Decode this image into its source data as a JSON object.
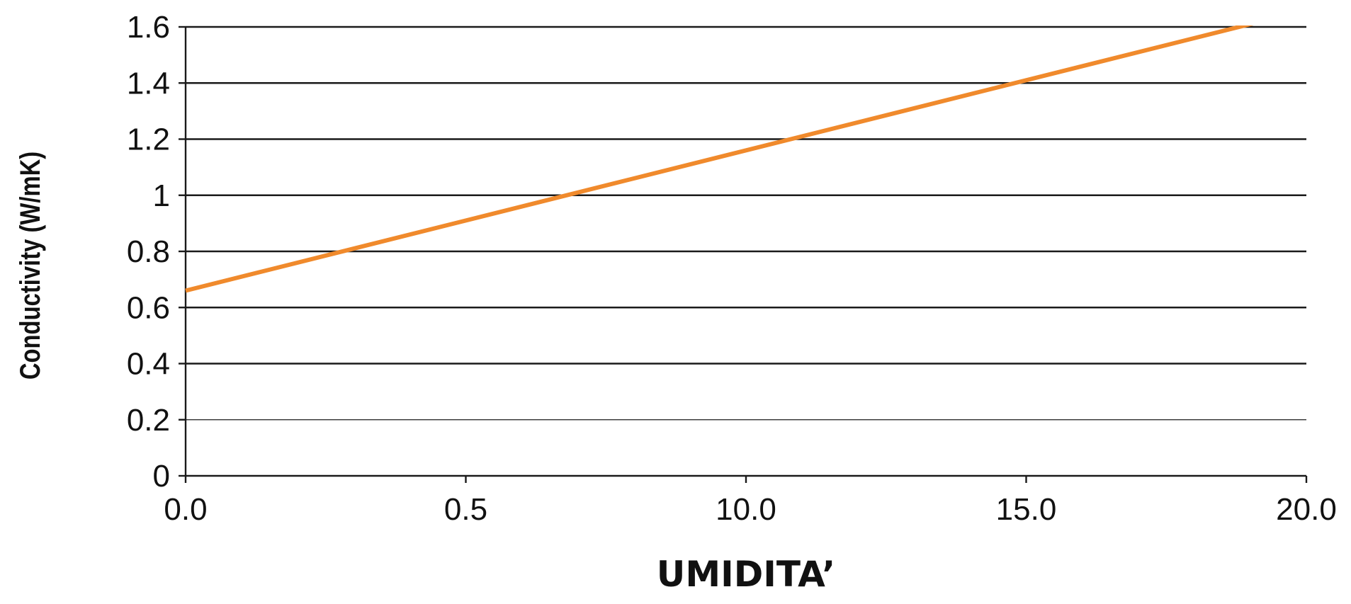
{
  "chart_data": {
    "type": "line",
    "title": "",
    "xlabel": "UMIDITA’",
    "ylabel": "Conductivity (W/mK)",
    "x_ticks": [
      "0.0",
      "0.5",
      "10.0",
      "15.0",
      "20.0"
    ],
    "y_ticks": [
      "0",
      "0.2",
      "0.4",
      "0.6",
      "0.8",
      "1",
      "1.2",
      "1.4",
      "1.6"
    ],
    "xlim": [
      0,
      20
    ],
    "ylim": [
      0,
      1.6
    ],
    "grid": true,
    "series": [
      {
        "x": [
          0,
          20
        ],
        "y": [
          0.66,
          1.66
        ],
        "color": "#f08a2c"
      }
    ]
  }
}
